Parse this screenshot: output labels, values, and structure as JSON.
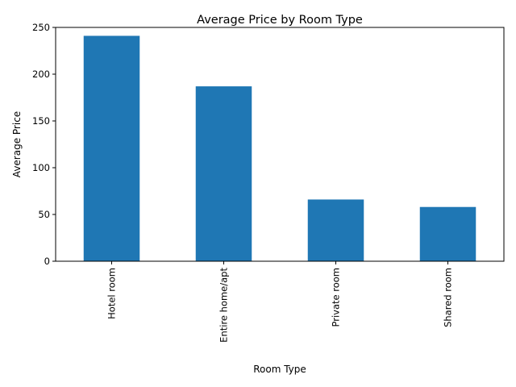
{
  "chart_data": {
    "type": "bar",
    "title": "Average Price by Room Type",
    "xlabel": "Room Type",
    "ylabel": "Average Price",
    "categories": [
      "Hotel room",
      "Entire home/apt",
      "Private room",
      "Shared room"
    ],
    "values": [
      241,
      187,
      66,
      58
    ],
    "ylim": [
      0,
      250
    ],
    "yticks": [
      0,
      50,
      100,
      150,
      200,
      250
    ],
    "bar_color": "#1f77b4",
    "grid": false,
    "legend": "none"
  }
}
